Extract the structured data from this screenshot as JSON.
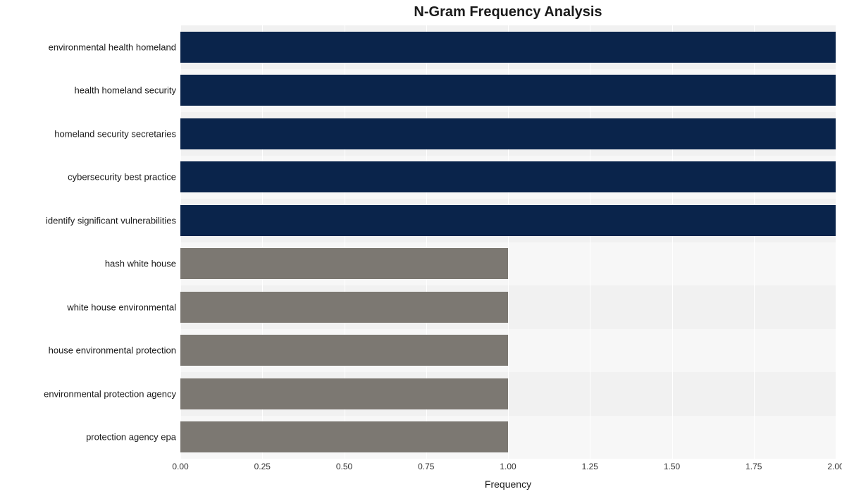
{
  "chart": {
    "type": "bar-horizontal",
    "title": "N-Gram Frequency Analysis",
    "title_fontsize": 20,
    "title_fontweight": "bold",
    "xlabel": "Frequency",
    "xlabel_fontsize": 14,
    "ylabel_fontsize": 13,
    "xtick_fontsize": 12,
    "background_color": "#ffffff",
    "panel_bg": "#f7f7f7",
    "band_bg": "#f1f1f1",
    "gridline_color": "#ffffff",
    "axis_text_color": "#333333",
    "xlim": [
      0.0,
      2.0
    ],
    "xtick_step": 0.25,
    "xticks": [
      "0.00",
      "0.25",
      "0.50",
      "0.75",
      "1.00",
      "1.25",
      "1.50",
      "1.75",
      "2.00"
    ],
    "bar_height_ratio": 0.72,
    "row_count": 10,
    "categories": [
      "environmental health homeland",
      "health homeland security",
      "homeland security secretaries",
      "cybersecurity best practice",
      "identify significant vulnerabilities",
      "hash white house",
      "white house environmental",
      "house environmental protection",
      "environmental protection agency",
      "protection agency epa"
    ],
    "values": [
      2,
      2,
      2,
      2,
      2,
      1,
      1,
      1,
      1,
      1
    ],
    "bar_colors": [
      "#0a244b",
      "#0a244b",
      "#0a244b",
      "#0a244b",
      "#0a244b",
      "#7c7872",
      "#7c7872",
      "#7c7872",
      "#7c7872",
      "#7c7872"
    ]
  }
}
